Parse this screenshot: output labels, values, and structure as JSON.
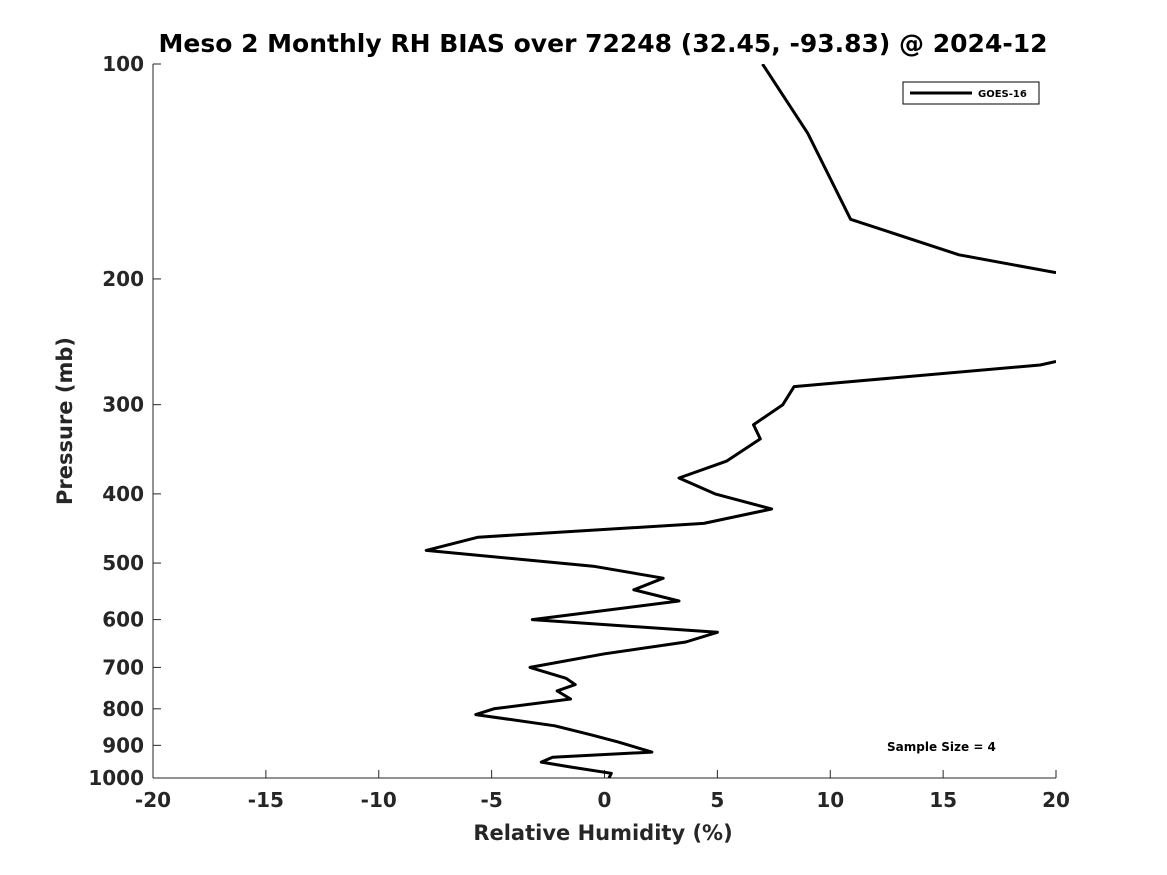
{
  "chart_data": {
    "type": "line",
    "title": "Meso 2 Monthly RH BIAS over 72248 (32.45, -93.83) @ 2024-12",
    "xlabel": "Relative Humidity (%)",
    "ylabel": "Pressure (mb)",
    "xlim": [
      -20,
      20
    ],
    "ylim": [
      1000,
      100
    ],
    "y_scale": "log",
    "y_reversed": true,
    "x_ticks": [
      -20,
      -15,
      -10,
      -5,
      0,
      5,
      10,
      15,
      20
    ],
    "x_tick_labels": [
      "-20",
      "-15",
      "-10",
      "-5",
      "0",
      "5",
      "10",
      "15",
      "20"
    ],
    "y_ticks": [
      100,
      200,
      300,
      400,
      500,
      600,
      700,
      800,
      900,
      1000
    ],
    "y_tick_labels": [
      "100",
      "200",
      "300",
      "400",
      "500",
      "600",
      "700",
      "800",
      "900",
      "1000"
    ],
    "grid": false,
    "legend_position": "top-right",
    "annotation": "Sample Size = 4",
    "series": [
      {
        "name": "GOES-16",
        "color": "#000000",
        "segments": [
          [
            {
              "x": 7.0,
              "y": 100
            },
            {
              "x": 9.0,
              "y": 125
            },
            {
              "x": 10.9,
              "y": 165
            },
            {
              "x": 15.7,
              "y": 185
            },
            {
              "x": 20.0,
              "y": 196
            }
          ],
          [
            {
              "x": 20.0,
              "y": 261
            },
            {
              "x": 19.3,
              "y": 264
            },
            {
              "x": 8.4,
              "y": 283
            },
            {
              "x": 7.9,
              "y": 300
            },
            {
              "x": 6.6,
              "y": 320
            },
            {
              "x": 6.9,
              "y": 335
            },
            {
              "x": 5.4,
              "y": 360
            },
            {
              "x": 3.3,
              "y": 380
            },
            {
              "x": 4.9,
              "y": 400
            },
            {
              "x": 7.4,
              "y": 420
            },
            {
              "x": 4.4,
              "y": 440
            },
            {
              "x": -5.6,
              "y": 460
            },
            {
              "x": -7.9,
              "y": 480
            },
            {
              "x": -0.5,
              "y": 505
            },
            {
              "x": 2.6,
              "y": 525
            },
            {
              "x": 1.3,
              "y": 545
            },
            {
              "x": 3.3,
              "y": 565
            },
            {
              "x": -3.2,
              "y": 600
            },
            {
              "x": 5.0,
              "y": 625
            },
            {
              "x": 3.6,
              "y": 645
            },
            {
              "x": 0.0,
              "y": 670
            },
            {
              "x": -3.3,
              "y": 700
            },
            {
              "x": -1.7,
              "y": 725
            },
            {
              "x": -1.3,
              "y": 740
            },
            {
              "x": -2.1,
              "y": 755
            },
            {
              "x": -1.5,
              "y": 775
            },
            {
              "x": -4.9,
              "y": 800
            },
            {
              "x": -5.7,
              "y": 815
            },
            {
              "x": -2.2,
              "y": 845
            },
            {
              "x": -0.6,
              "y": 870
            },
            {
              "x": 0.6,
              "y": 890
            },
            {
              "x": 2.1,
              "y": 920
            },
            {
              "x": -2.3,
              "y": 935
            },
            {
              "x": -2.8,
              "y": 950
            },
            {
              "x": -1.5,
              "y": 965
            },
            {
              "x": 0.3,
              "y": 985
            },
            {
              "x": 0.2,
              "y": 1000
            }
          ]
        ]
      }
    ]
  }
}
